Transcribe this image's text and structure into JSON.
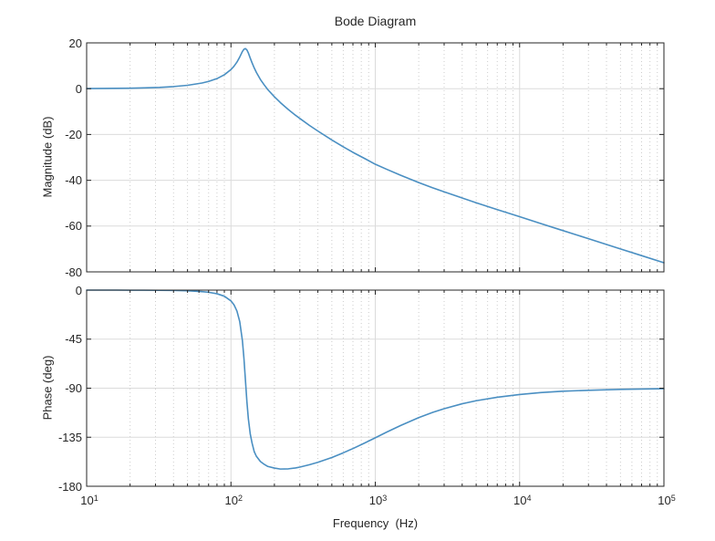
{
  "title": "Bode Diagram",
  "colors": {
    "background": "#ffffff",
    "axis": "#262626",
    "text": "#262626",
    "grid_major": "#dbdbdb",
    "grid_minor": "#cccccc",
    "line": "#4a8fc2"
  },
  "chart_data": {
    "type": "line",
    "title": "Bode Diagram",
    "xlabel": "Frequency  (Hz)",
    "x_scale": "log",
    "x_range": [
      10,
      100000
    ],
    "x_tick_labels": [
      {
        "base": "10",
        "exp": "1"
      },
      {
        "base": "10",
        "exp": "2"
      },
      {
        "base": "10",
        "exp": "3"
      },
      {
        "base": "10",
        "exp": "4"
      },
      {
        "base": "10",
        "exp": "5"
      }
    ],
    "grid": true,
    "minor_grid": true,
    "line_color": "#4a8fc2",
    "subplots": [
      {
        "name": "magnitude",
        "ylabel": "Magnitude (dB)",
        "ylim": [
          -80,
          20
        ],
        "yticks": [
          20,
          0,
          -20,
          -40,
          -60,
          -80
        ],
        "series": [
          {
            "name": "magnitude",
            "points": [
              [
                10,
                0.05
              ],
              [
                13,
                0.09
              ],
              [
                16,
                0.14
              ],
              [
                20,
                0.22
              ],
              [
                25,
                0.35
              ],
              [
                32,
                0.57
              ],
              [
                40,
                0.92
              ],
              [
                50,
                1.48
              ],
              [
                63,
                2.48
              ],
              [
                70,
                3.18
              ],
              [
                80,
                4.4
              ],
              [
                90,
                6.08
              ],
              [
                100,
                8.35
              ],
              [
                105,
                9.83
              ],
              [
                110,
                11.6
              ],
              [
                115,
                13.8
              ],
              [
                120,
                16.25
              ],
              [
                123,
                17.2
              ],
              [
                126,
                17.5
              ],
              [
                129,
                16.9
              ],
              [
                132,
                15.6
              ],
              [
                136,
                13.36
              ],
              [
                140,
                11.3
              ],
              [
                145,
                9.03
              ],
              [
                150,
                7.1
              ],
              [
                160,
                4.0
              ],
              [
                170,
                1.65
              ],
              [
                180,
                -0.42
              ],
              [
                200,
                -3.54
              ],
              [
                220,
                -6.08
              ],
              [
                250,
                -9.13
              ],
              [
                280,
                -11.6
              ],
              [
                300,
                -13.0
              ],
              [
                350,
                -16.05
              ],
              [
                400,
                -18.5
              ],
              [
                500,
                -22.4
              ],
              [
                600,
                -25.4
              ],
              [
                700,
                -27.8
              ],
              [
                850,
                -30.6
              ],
              [
                1000,
                -33.0
              ],
              [
                1200,
                -35.2
              ],
              [
                1500,
                -37.8
              ],
              [
                2000,
                -41.0
              ],
              [
                2500,
                -43.3
              ],
              [
                3000,
                -45.05
              ],
              [
                4000,
                -47.75
              ],
              [
                5000,
                -49.8
              ],
              [
                7000,
                -52.8
              ],
              [
                10000,
                -55.9
              ],
              [
                14000,
                -58.9
              ],
              [
                20000,
                -62.0
              ],
              [
                30000,
                -65.5
              ],
              [
                50000,
                -70.0
              ],
              [
                70000,
                -72.9
              ],
              [
                100000,
                -76.0
              ]
            ]
          }
        ]
      },
      {
        "name": "phase",
        "ylabel": "Phase (deg)",
        "ylim": [
          -180,
          0
        ],
        "yticks": [
          0,
          -45,
          -90,
          -135,
          -180
        ],
        "series": [
          {
            "name": "phase",
            "points": [
              [
                10,
                0.0
              ],
              [
                13,
                0.0
              ],
              [
                16,
                0.0
              ],
              [
                20,
                -0.1
              ],
              [
                25,
                -0.1
              ],
              [
                32,
                -0.2
              ],
              [
                40,
                -0.3
              ],
              [
                50,
                -0.6
              ],
              [
                63,
                -1.4
              ],
              [
                70,
                -2.0
              ],
              [
                80,
                -3.3
              ],
              [
                90,
                -5.6
              ],
              [
                100,
                -9.9
              ],
              [
                105,
                -13.5
              ],
              [
                110,
                -19.2
              ],
              [
                115,
                -28.8
              ],
              [
                120,
                -46.2
              ],
              [
                123,
                -62.6
              ],
              [
                126,
                -82.8
              ],
              [
                129,
                -102.6
              ],
              [
                132,
                -118.1
              ],
              [
                136,
                -131.9
              ],
              [
                140,
                -140.3
              ],
              [
                145,
                -148.3
              ],
              [
                150,
                -152.5
              ],
              [
                160,
                -157.3
              ],
              [
                170,
                -159.9
              ],
              [
                180,
                -161.8
              ],
              [
                200,
                -163.3
              ],
              [
                220,
                -164.2
              ],
              [
                250,
                -164.0
              ],
              [
                280,
                -163.2
              ],
              [
                300,
                -162.4
              ],
              [
                350,
                -160.2
              ],
              [
                400,
                -158.0
              ],
              [
                500,
                -153.6
              ],
              [
                600,
                -149.3
              ],
              [
                700,
                -145.4
              ],
              [
                850,
                -140.1
              ],
              [
                1000,
                -135.5
              ],
              [
                1200,
                -130.3
              ],
              [
                1500,
                -124.2
              ],
              [
                2000,
                -117.0
              ],
              [
                2500,
                -112.2
              ],
              [
                3000,
                -108.8
              ],
              [
                4000,
                -104.3
              ],
              [
                5000,
                -101.5
              ],
              [
                7000,
                -98.3
              ],
              [
                10000,
                -95.8
              ],
              [
                14000,
                -94.0
              ],
              [
                20000,
                -92.8
              ],
              [
                30000,
                -91.9
              ],
              [
                50000,
                -91.1
              ],
              [
                70000,
                -90.8
              ],
              [
                100000,
                -90.5
              ]
            ]
          }
        ]
      }
    ]
  }
}
